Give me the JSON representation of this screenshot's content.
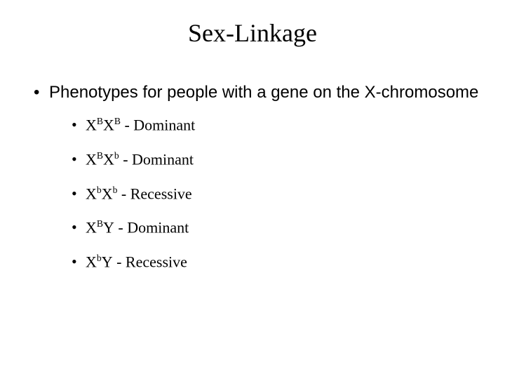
{
  "title": "Sex-Linkage",
  "main_text": "Phenotypes for people with a gene on the X-chromosome",
  "items": [
    {
      "allele1_base": "X",
      "allele1_sup": "B",
      "allele2_base": "X",
      "allele2_sup": "B",
      "desc": " - Dominant"
    },
    {
      "allele1_base": "X",
      "allele1_sup": "B",
      "allele2_base": "X",
      "allele2_sup": "b",
      "desc": " - Dominant"
    },
    {
      "allele1_base": "X",
      "allele1_sup": "b",
      "allele2_base": "X",
      "allele2_sup": "b",
      "desc": " - Recessive"
    },
    {
      "allele1_base": "X",
      "allele1_sup": "B",
      "allele2_base": "Y",
      "allele2_sup": "",
      "desc": " - Dominant"
    },
    {
      "allele1_base": "X",
      "allele1_sup": "b",
      "allele2_base": "Y",
      "allele2_sup": "",
      "desc": " - Recessive"
    }
  ],
  "colors": {
    "background": "#ffffff",
    "text": "#000000"
  },
  "fonts": {
    "title_family": "Times New Roman",
    "title_size_pt": 28,
    "body_family": "Arial",
    "body_size_pt": 18,
    "sub_family": "Times New Roman",
    "sub_size_pt": 16
  }
}
